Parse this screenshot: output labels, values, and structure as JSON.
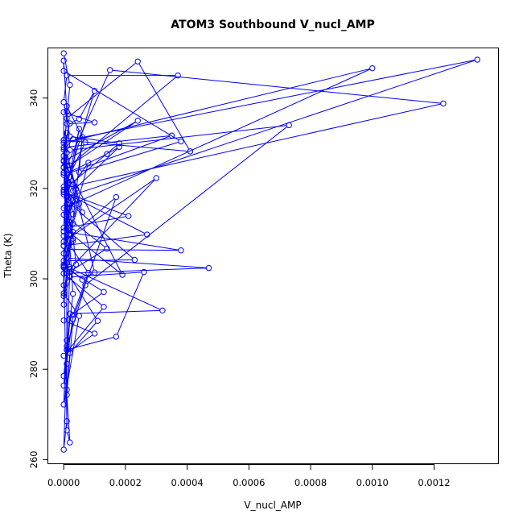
{
  "chart_data": {
    "type": "line",
    "title": "ATOM3 Southbound V_nucl_AMP",
    "xlabel": "V_nucl_AMP",
    "ylabel": "Theta (K)",
    "xlim": [
      -5e-05,
      0.00141
    ],
    "ylim": [
      259,
      351
    ],
    "grid": false,
    "markers": "open-circle",
    "line_color": "#0000ff",
    "xticks": [
      {
        "value": 0,
        "label": "0.0000"
      },
      {
        "value": 0.0002,
        "label": "0.0002"
      },
      {
        "value": 0.0004,
        "label": "0.0004"
      },
      {
        "value": 0.0006,
        "label": "0.0006"
      },
      {
        "value": 0.0008,
        "label": "0.0008"
      },
      {
        "value": 0.001,
        "label": "0.0010"
      },
      {
        "value": 0.0012,
        "label": "0.0012"
      }
    ],
    "yticks": [
      {
        "value": 260,
        "label": "260"
      },
      {
        "value": 280,
        "label": "280"
      },
      {
        "value": 300,
        "label": "300"
      },
      {
        "value": 320,
        "label": "320"
      },
      {
        "value": 340,
        "label": "340"
      }
    ],
    "series": [
      {
        "color": "#0000ff",
        "points": [
          [
            0.0,
            349.9
          ],
          [
            2e-05,
            342.9
          ],
          [
            1e-05,
            335.5
          ],
          [
            0.00024,
            348.1
          ],
          [
            0.00041,
            328.2
          ],
          [
            0.0,
            330.7
          ],
          [
            1e-05,
            325.0
          ],
          [
            0.00015,
            346.2
          ],
          [
            0.00123,
            338.8
          ],
          [
            1e-05,
            320.2
          ],
          [
            5e-05,
            333.2
          ],
          [
            1e-05,
            316.5
          ],
          [
            3e-05,
            308.4
          ],
          [
            0.0,
            302.7
          ],
          [
            0.00013,
            297.1
          ],
          [
            0.0,
            290.8
          ],
          [
            0.0001,
            287.9
          ],
          [
            0.0,
            283.0
          ],
          [
            0.00013,
            293.8
          ],
          [
            0.0,
            301.2
          ],
          [
            0.00047,
            302.4
          ],
          [
            1e-05,
            304.6
          ],
          [
            1e-05,
            286.4
          ],
          [
            0.0,
            272.2
          ],
          [
            5e-05,
            291.8
          ],
          [
            0.0,
            296.8
          ],
          [
            0.0,
            302.5
          ],
          [
            3e-05,
            308.9
          ],
          [
            0.0,
            319.7
          ],
          [
            0.00018,
            330.0
          ],
          [
            2e-05,
            331.5
          ],
          [
            0.0,
            339.1
          ],
          [
            1e-05,
            345.0
          ],
          [
            0.00037,
            345.0
          ],
          [
            2e-05,
            325.1
          ],
          [
            0.00024,
            335.0
          ],
          [
            0.0,
            326.0
          ],
          [
            3e-05,
            314.3
          ],
          [
            0.0,
            310.5
          ],
          [
            0.00038,
            306.3
          ],
          [
            1e-05,
            306.5
          ],
          [
            0.0,
            298.6
          ],
          [
            2e-05,
            300.4
          ],
          [
            0.00026,
            301.5
          ],
          [
            0.00017,
            287.2
          ],
          [
            1e-05,
            284.3
          ],
          [
            0.0,
            276.4
          ],
          [
            3e-05,
            292.0
          ],
          [
            8e-05,
            301.3
          ],
          [
            0.0,
            309.5
          ],
          [
            4e-05,
            319.9
          ],
          [
            0.0,
            323.5
          ],
          [
            0.0,
            328.6
          ],
          [
            3e-05,
            330.9
          ],
          [
            0.00134,
            348.5
          ],
          [
            1e-05,
            318.1
          ],
          [
            2e-05,
            311.3
          ],
          [
            0.0,
            307.3
          ],
          [
            0.00027,
            309.8
          ],
          [
            0.0,
            319.2
          ],
          [
            3e-05,
            317.4
          ],
          [
            1e-05,
            313.8
          ],
          [
            0.0,
            303.1
          ],
          [
            1e-05,
            268.5
          ],
          [
            0.0,
            262.2
          ],
          [
            2e-05,
            302.6
          ],
          [
            0.0,
            320.4
          ],
          [
            1e-05,
            327.9
          ],
          [
            6e-05,
            314.7
          ],
          [
            0.0,
            318.7
          ],
          [
            0.0001,
            341.6
          ],
          [
            5e-05,
            335.4
          ],
          [
            2e-05,
            334.4
          ],
          [
            0.0,
            329.1
          ],
          [
            0.00035,
            331.7
          ],
          [
            1e-05,
            323.2
          ],
          [
            0.0,
            311.3
          ],
          [
            0.00019,
            300.9
          ],
          [
            0.0,
            326.2
          ],
          [
            1e-05,
            312.8
          ],
          [
            3e-05,
            319.5
          ],
          [
            0.00018,
            329.2
          ],
          [
            0.00014,
            327.6
          ],
          [
            0.0,
            323.0
          ],
          [
            1e-05,
            315.6
          ],
          [
            0.0,
            307.3
          ],
          [
            0.0,
            294.3
          ],
          [
            6e-05,
            331.4
          ],
          [
            5e-05,
            323.6
          ],
          [
            0.00038,
            330.4
          ],
          [
            0.0,
            346.0
          ],
          [
            0.0,
            348.3
          ],
          [
            1e-05,
            337.0
          ],
          [
            2e-05,
            328.5
          ],
          [
            0.00073,
            334.0
          ],
          [
            7e-05,
            298.6
          ],
          [
            1e-05,
            285.1
          ],
          [
            0.0,
            278.5
          ],
          [
            1e-05,
            281.2
          ],
          [
            2e-05,
            292.3
          ],
          [
            0.00032,
            293.0
          ],
          [
            0.0,
            303.0
          ],
          [
            3e-05,
            310.4
          ],
          [
            0.0,
            304.0
          ],
          [
            0.00023,
            304.2
          ],
          [
            2e-05,
            316.7
          ],
          [
            1e-05,
            320.5
          ],
          [
            0.0,
            330.1
          ],
          [
            0.001,
            346.6
          ],
          [
            0.0,
            315.6
          ],
          [
            1e-05,
            301.2
          ],
          [
            0.00014,
            306.7
          ],
          [
            0.0,
            314.2
          ],
          [
            1e-05,
            311.3
          ],
          [
            0.00021,
            313.9
          ],
          [
            0.0,
            319.2
          ],
          [
            2e-05,
            322.6
          ],
          [
            0.0,
            327.2
          ],
          [
            3e-05,
            296.7
          ],
          [
            1e-05,
            284.3
          ],
          [
            1e-05,
            275.5
          ],
          [
            2e-05,
            283.6
          ],
          [
            0.00011,
            290.7
          ],
          [
            2e-05,
            300.5
          ],
          [
            0.0,
            305.6
          ],
          [
            8e-05,
            325.7
          ],
          [
            3e-05,
            320.9
          ],
          [
            0.0,
            323.5
          ],
          [
            1e-05,
            338.2
          ],
          [
            7e-05,
            330.2
          ],
          [
            1e-05,
            321.6
          ],
          [
            4e-05,
            303.2
          ],
          [
            0.0,
            296.2
          ],
          [
            3e-05,
            312.3
          ],
          [
            5e-05,
            316.6
          ],
          [
            1e-05,
            319.1
          ],
          [
            0.0,
            324.6
          ],
          [
            1e-05,
            332.3
          ],
          [
            1e-05,
            266.5
          ],
          [
            2e-05,
            263.8
          ],
          [
            1e-05,
            274.3
          ],
          [
            3e-05,
            291.1
          ],
          [
            0.00017,
            318.1
          ],
          [
            0.0,
            308.2
          ],
          [
            0.0003,
            322.3
          ],
          [
            2e-05,
            302.2
          ],
          [
            6e-05,
            299.8
          ],
          [
            0.0001,
            301.4
          ],
          [
            0.0,
            330.7
          ],
          [
            1e-05,
            334.3
          ],
          [
            0.0001,
            334.6
          ],
          [
            0.0,
            336.9
          ],
          [
            0.0,
            324.7
          ],
          [
            4e-05,
            317.7
          ],
          [
            1e-05,
            313.7
          ]
        ]
      }
    ]
  }
}
